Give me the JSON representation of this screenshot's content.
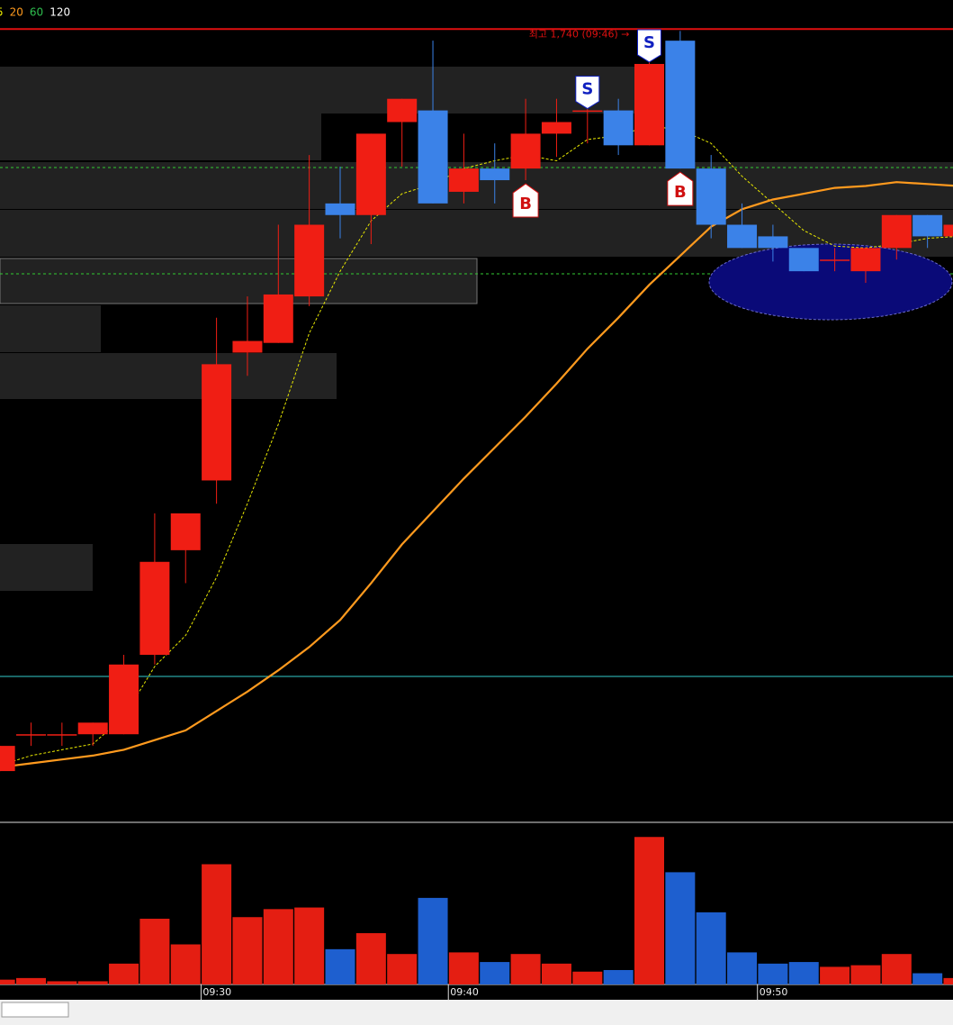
{
  "chart_data": {
    "type": "candlestick",
    "categories": [
      null,
      null,
      null,
      null,
      null,
      null,
      null,
      "09:30",
      null,
      null,
      null,
      null,
      null,
      null,
      null,
      "09:40",
      null,
      null,
      null,
      null,
      null,
      null,
      null,
      null,
      null,
      "09:50",
      null,
      null,
      null,
      null,
      null,
      null
    ],
    "open": [
      1357,
      1376,
      1376,
      1376,
      1376,
      1417,
      1471,
      1507,
      1573,
      1578,
      1602,
      1650,
      1644,
      1692,
      1698,
      1656,
      1668,
      1668,
      1686,
      1698,
      1698,
      1680,
      1734,
      1668,
      1639,
      1633,
      1627,
      1621,
      1615,
      1627,
      1644,
      1633
    ],
    "high": [
      1370,
      1382,
      1382,
      1382,
      1417,
      1490,
      1490,
      1591,
      1602,
      1639,
      1675,
      1669,
      1686,
      1704,
      1734,
      1686,
      1681,
      1704,
      1704,
      1704,
      1704,
      1740,
      1739,
      1675,
      1650,
      1639,
      1627,
      1627,
      1627,
      1644,
      1644,
      1639
    ],
    "low": [
      1357,
      1370,
      1370,
      1370,
      1376,
      1412,
      1454,
      1495,
      1561,
      1578,
      1597,
      1632,
      1629,
      1669,
      1650,
      1650,
      1650,
      1662,
      1674,
      1681,
      1675,
      1680,
      1668,
      1632,
      1627,
      1620,
      1615,
      1615,
      1609,
      1621,
      1627,
      1633
    ],
    "close": [
      1370,
      1376,
      1376,
      1382,
      1412,
      1465,
      1490,
      1567,
      1579,
      1603,
      1639,
      1644,
      1686,
      1704,
      1650,
      1668,
      1662,
      1686,
      1692,
      1698,
      1680,
      1722,
      1668,
      1639,
      1627,
      1627,
      1615,
      1621,
      1627,
      1644,
      1633,
      1639
    ],
    "up_color": "#f01e14",
    "down_color": "#3b82e8",
    "ylim": [
      1331,
      1755
    ],
    "series": [
      {
        "name": "5",
        "color": "#e8e800",
        "values": [
          1360,
          1365,
          1368,
          1371,
          1385,
          1411,
          1427,
          1457,
          1495,
          1536,
          1583,
          1615,
          1641,
          1655,
          1660,
          1668,
          1672,
          1675,
          1672,
          1683,
          1685,
          1690,
          1688,
          1681,
          1664,
          1650,
          1636,
          1628,
          1627,
          1629,
          1632,
          1633
        ]
      },
      {
        "name": "20",
        "color": "#ff9a1e",
        "values": [
          1359,
          1361,
          1363,
          1365,
          1368,
          1373,
          1378,
          1388,
          1398,
          1409,
          1421,
          1435,
          1454,
          1474,
          1491,
          1508,
          1524,
          1540,
          1557,
          1575,
          1591,
          1608,
          1623,
          1638,
          1647,
          1652,
          1655,
          1658,
          1659,
          1661,
          1660,
          1659
        ]
      },
      {
        "name": "60",
        "color": "#2fbf4f",
        "values": [
          null,
          null,
          null,
          null,
          null,
          null,
          null,
          null,
          null,
          null,
          null,
          null,
          null,
          null,
          null,
          null,
          null,
          null,
          null,
          null,
          null,
          null,
          null,
          null,
          null,
          null,
          null,
          null,
          null,
          null,
          null,
          null
        ]
      },
      {
        "name": "120",
        "color": "#ffffff",
        "values": [
          null,
          null,
          null,
          null,
          null,
          null,
          null,
          null,
          null,
          null,
          null,
          null,
          null,
          null,
          null,
          null,
          null,
          null,
          null,
          null,
          null,
          null,
          null,
          null,
          null,
          null,
          null,
          null,
          null,
          null,
          null,
          null
        ]
      }
    ],
    "annotation": "최고 1,740 (09:46) →",
    "signals": [
      {
        "label": "S",
        "index": 19
      },
      {
        "label": "S",
        "index": 21
      },
      {
        "label": "B",
        "index": 17
      },
      {
        "label": "B",
        "index": 22
      }
    ],
    "volume": {
      "values": [
        3,
        4,
        2,
        2,
        13,
        41,
        25,
        75,
        42,
        47,
        48,
        22,
        32,
        19,
        54,
        20,
        14,
        19,
        13,
        8,
        9,
        92,
        70,
        45,
        20,
        13,
        14,
        11,
        12,
        19,
        7,
        4
      ],
      "ylim": [
        0,
        100
      ],
      "up_color": "#e41e12",
      "down_color": "#1e5fcf"
    }
  }
}
